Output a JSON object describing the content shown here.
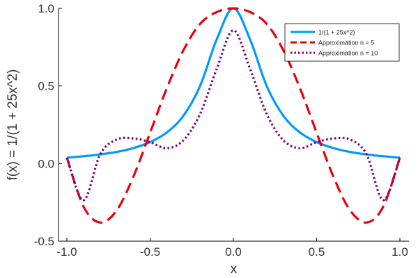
{
  "chart_data": {
    "type": "line",
    "title": "",
    "xlabel": "x",
    "ylabel": "f(x) = 1/(1 + 25x^2)",
    "xlim": [
      -1.0,
      1.0
    ],
    "ylim": [
      -0.5,
      1.0
    ],
    "xticks": [
      -1.0,
      -0.5,
      0.0,
      0.5,
      1.0
    ],
    "xtick_labels": [
      "-1.0",
      "-0.5",
      "0.0",
      "0.5",
      "1.0"
    ],
    "yticks": [
      -0.5,
      0.0,
      0.5,
      1.0
    ],
    "ytick_labels": [
      "-0.5",
      "0.0",
      "0.5",
      "1.0"
    ],
    "grid": false,
    "legend_position": "top-right",
    "x": [
      -1.0,
      -0.9,
      -0.8,
      -0.7,
      -0.6,
      -0.5,
      -0.4,
      -0.3,
      -0.2,
      -0.1,
      0.0,
      0.1,
      0.2,
      0.3,
      0.4,
      0.5,
      0.6,
      0.7,
      0.8,
      0.9,
      1.0
    ],
    "series": [
      {
        "name": "1/(1 + 25x^2)",
        "color": "#009af9",
        "style": "solid",
        "values": [
          0.038,
          0.047,
          0.059,
          0.075,
          0.1,
          0.138,
          0.2,
          0.308,
          0.5,
          0.8,
          1.0,
          0.8,
          0.5,
          0.308,
          0.2,
          0.138,
          0.1,
          0.075,
          0.059,
          0.047,
          0.038
        ]
      },
      {
        "name": "Approximation n = 5",
        "color": "#e8000b",
        "style": "dashed",
        "values": [
          0.038,
          -0.277,
          -0.38,
          -0.3,
          -0.083,
          0.199,
          0.485,
          0.73,
          0.9,
          0.976,
          1.0,
          0.976,
          0.9,
          0.73,
          0.485,
          0.199,
          -0.083,
          -0.3,
          -0.38,
          -0.277,
          0.038
        ]
      },
      {
        "name": "Approximation n = 10",
        "color": "#800080",
        "style": "dotted",
        "values": [
          0.038,
          -0.236,
          0.06,
          0.155,
          0.162,
          0.138,
          0.099,
          0.15,
          0.32,
          0.61,
          0.858,
          0.61,
          0.32,
          0.15,
          0.099,
          0.138,
          0.162,
          0.155,
          0.06,
          -0.236,
          0.038
        ]
      }
    ]
  }
}
